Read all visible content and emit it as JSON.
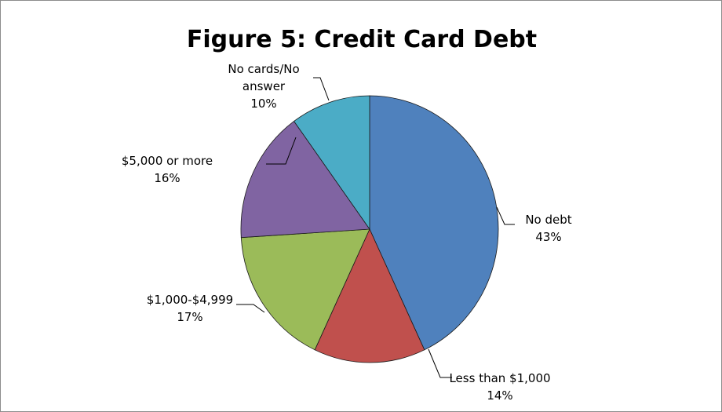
{
  "chart_data": {
    "type": "pie",
    "title": "Figure 5: Credit Card Debt",
    "slices": [
      {
        "label": "No debt",
        "value": 43,
        "display": "43%",
        "color": "#4F81BD"
      },
      {
        "label": "Less than $1,000",
        "value": 14,
        "display": "14%",
        "color": "#C0504D"
      },
      {
        "label": "$1,000-$4,999",
        "value": 17,
        "display": "17%",
        "color": "#9BBB59"
      },
      {
        "label": "$5,000 or more",
        "value": 16,
        "display": "16%",
        "color": "#8064A2"
      },
      {
        "label": "No cards/No answer",
        "label_lines": [
          "No cards/No",
          "answer"
        ],
        "value": 10,
        "display": "10%",
        "color": "#4BACC6"
      }
    ],
    "start": "top",
    "direction": "clockwise",
    "legend": "none",
    "data_labels": "outside with leader lines"
  }
}
